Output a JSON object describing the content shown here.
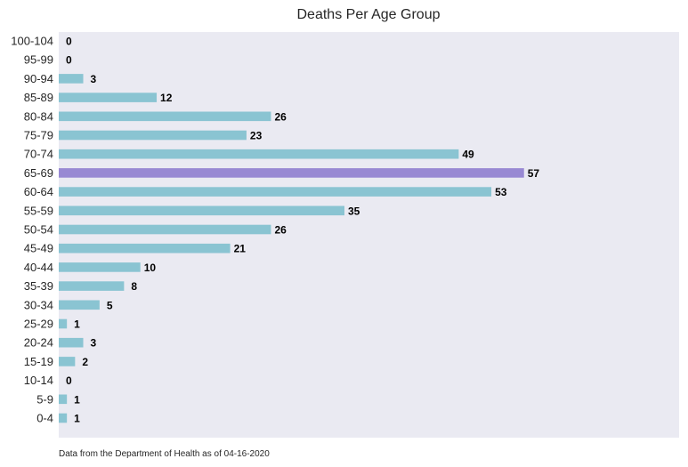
{
  "chart_data": {
    "type": "bar",
    "orientation": "horizontal",
    "title": "Deaths Per Age Group",
    "categories": [
      "100-104",
      "95-99",
      "90-94",
      "85-89",
      "80-84",
      "75-79",
      "70-74",
      "65-69",
      "60-64",
      "55-59",
      "50-54",
      "45-49",
      "40-44",
      "35-39",
      "30-34",
      "25-29",
      "20-24",
      "15-19",
      "10-14",
      "5-9",
      "0-4"
    ],
    "values": [
      0,
      0,
      3,
      12,
      26,
      23,
      49,
      57,
      53,
      35,
      26,
      21,
      10,
      8,
      5,
      1,
      3,
      2,
      0,
      1,
      1
    ],
    "highlight_category": "65-69",
    "xlim": [
      0,
      76
    ],
    "grid": false,
    "annotation": "Data from the Department of Health as of 04-16-2020"
  },
  "colors": {
    "background": "#eaeaf2",
    "bar": "#8ac4d2",
    "highlight": "#9889d3",
    "text": "#262626"
  }
}
